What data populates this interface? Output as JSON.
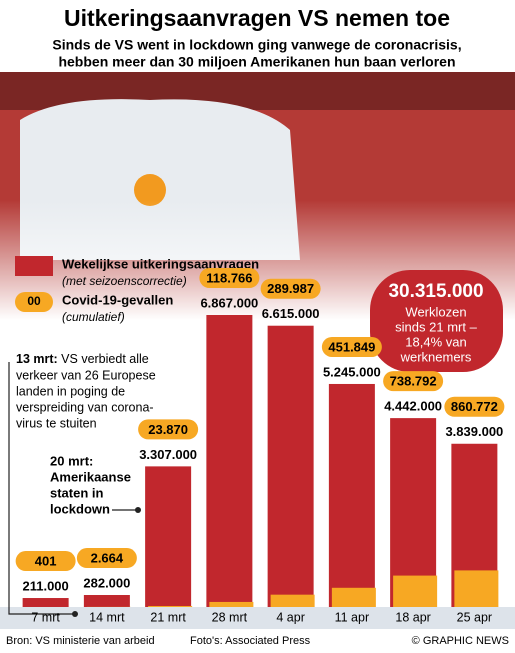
{
  "chart_data": {
    "type": "bar",
    "title": "Uitkeringsaanvragen VS nemen toe",
    "subtitle": [
      "Sinds de VS went in lockdown ging vanwege de coronacrisis,",
      "hebben meer dan 30 miljoen Amerikanen hun baan verloren"
    ],
    "categories": [
      "7 mrt",
      "14 mrt",
      "21 mrt",
      "28 mrt",
      "4 apr",
      "11 apr",
      "18 apr",
      "25 apr"
    ],
    "series": [
      {
        "name": "Wekelijkse uitkeringsaanvragen",
        "note": "(met seizoenscorrectie)",
        "color": "#c1272d",
        "values": [
          211000,
          282000,
          3307000,
          6867000,
          6615000,
          5245000,
          4442000,
          3839000
        ],
        "value_labels": [
          "211.000",
          "282.000",
          "3.307.000",
          "6.867.000",
          "6.615.000",
          "5.245.000",
          "4.442.000",
          "3.839.000"
        ]
      },
      {
        "name": "Covid-19-gevallen",
        "note": "(cumulatief)",
        "legend_sample": "00",
        "color": "#f7a823",
        "values": [
          401,
          2664,
          23870,
          118766,
          289987,
          451849,
          738792,
          860772
        ],
        "value_labels": [
          "401",
          "2.664",
          "23.870",
          "118.766",
          "289.987",
          "451.849",
          "738.792",
          "860.772"
        ]
      }
    ],
    "callout": {
      "value": "30.315.000",
      "lines": [
        "Werklozen",
        "sinds 21 mrt –",
        "18,4% van",
        "werknemers"
      ]
    },
    "annotations": [
      {
        "label": "13 mrt:",
        "lines": [
          "VS verbiedt alle",
          "verkeer van 26 Europese",
          "landen in poging de",
          "verspreiding van corona-",
          "virus te stuiten"
        ]
      },
      {
        "label": "20 mrt:",
        "lines": [
          "Amerikaanse",
          "staten in",
          "lockdown"
        ]
      }
    ],
    "source": "Bron: VS ministerie van arbeid",
    "photo_credit": "Foto's: Associated Press",
    "copyright": "© GRAPHIC NEWS"
  }
}
